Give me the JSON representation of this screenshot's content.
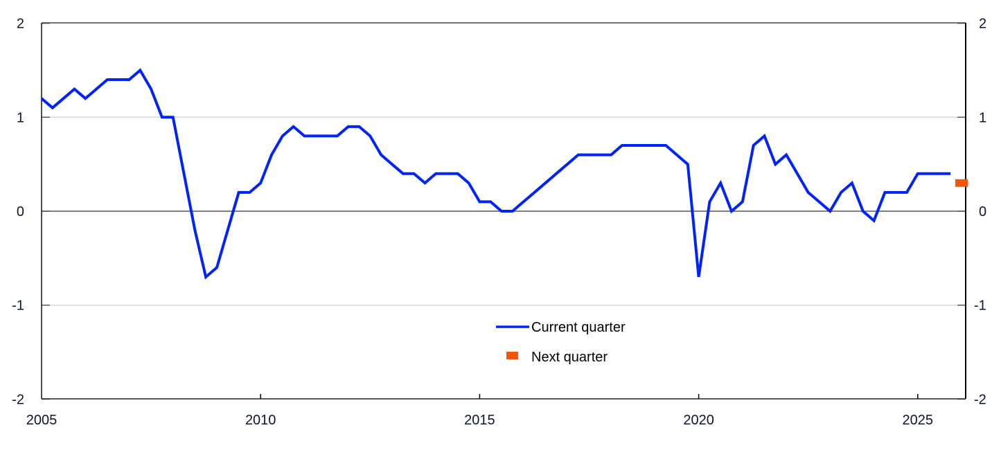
{
  "chart_data": {
    "type": "line",
    "title": "",
    "xlabel": "",
    "ylabel": "",
    "ylim": [
      -2,
      2
    ],
    "y_ticks_left": [
      "2",
      "1",
      "0",
      "-1",
      "-2"
    ],
    "y_ticks_right": [
      "2",
      "1",
      "0",
      "-1",
      "-2"
    ],
    "x_ticks": [
      "2005",
      "2010",
      "2015",
      "2020",
      "2025"
    ],
    "x_range": [
      "2005Q1",
      "2026Q1"
    ],
    "grid": "horizontal",
    "legend_position": "center-bottom inside plot",
    "series": [
      {
        "name": "Current quarter",
        "style": "line",
        "color": "#0022ff",
        "x": [
          "2005Q1",
          "2005Q2",
          "2005Q3",
          "2005Q4",
          "2006Q1",
          "2006Q2",
          "2006Q3",
          "2006Q4",
          "2007Q1",
          "2007Q2",
          "2007Q3",
          "2007Q4",
          "2008Q1",
          "2008Q2",
          "2008Q3",
          "2008Q4",
          "2009Q1",
          "2009Q2",
          "2009Q3",
          "2009Q4",
          "2010Q1",
          "2010Q2",
          "2010Q3",
          "2010Q4",
          "2011Q1",
          "2011Q2",
          "2011Q3",
          "2011Q4",
          "2012Q1",
          "2012Q2",
          "2012Q3",
          "2012Q4",
          "2013Q1",
          "2013Q2",
          "2013Q3",
          "2013Q4",
          "2014Q1",
          "2014Q2",
          "2014Q3",
          "2014Q4",
          "2015Q1",
          "2015Q2",
          "2015Q3",
          "2015Q4",
          "2016Q1",
          "2016Q2",
          "2016Q3",
          "2016Q4",
          "2017Q1",
          "2017Q2",
          "2017Q3",
          "2017Q4",
          "2018Q1",
          "2018Q2",
          "2018Q3",
          "2018Q4",
          "2019Q1",
          "2019Q2",
          "2019Q3",
          "2019Q4",
          "2020Q1",
          "2020Q2",
          "2020Q3",
          "2020Q4",
          "2021Q1",
          "2021Q2",
          "2021Q3",
          "2021Q4",
          "2022Q1",
          "2022Q2",
          "2022Q3",
          "2022Q4",
          "2023Q1",
          "2023Q2",
          "2023Q3",
          "2023Q4",
          "2024Q1",
          "2024Q2",
          "2024Q3",
          "2024Q4",
          "2025Q1",
          "2025Q2",
          "2025Q3",
          "2025Q4"
        ],
        "values": [
          1.2,
          1.1,
          1.2,
          1.3,
          1.2,
          1.3,
          1.4,
          1.4,
          1.4,
          1.5,
          1.3,
          1.0,
          1.0,
          0.4,
          -0.2,
          -0.7,
          -0.6,
          -0.2,
          0.2,
          0.2,
          0.3,
          0.6,
          0.8,
          0.9,
          0.8,
          0.8,
          0.8,
          0.8,
          0.9,
          0.9,
          0.8,
          0.6,
          0.5,
          0.4,
          0.4,
          0.3,
          0.4,
          0.4,
          0.4,
          0.3,
          0.1,
          0.1,
          0.0,
          0.0,
          0.1,
          0.2,
          0.3,
          0.4,
          0.5,
          0.6,
          0.6,
          0.6,
          0.6,
          0.7,
          0.7,
          0.7,
          0.7,
          0.7,
          0.6,
          0.5,
          -0.7,
          0.1,
          0.3,
          0.0,
          0.1,
          0.7,
          0.8,
          0.5,
          0.6,
          0.4,
          0.2,
          0.1,
          0.0,
          0.2,
          0.3,
          0.0,
          -0.1,
          0.2,
          0.2,
          0.2,
          0.4,
          0.4,
          0.4,
          0.4
        ]
      },
      {
        "name": "Next quarter",
        "style": "marker",
        "color": "#f75408",
        "x": [
          "2026Q1"
        ],
        "values": [
          0.3
        ]
      }
    ]
  },
  "legend": {
    "items": [
      {
        "label": "Current quarter",
        "color": "#0022ff"
      },
      {
        "label": "Next quarter",
        "color": "#f75408"
      }
    ]
  }
}
